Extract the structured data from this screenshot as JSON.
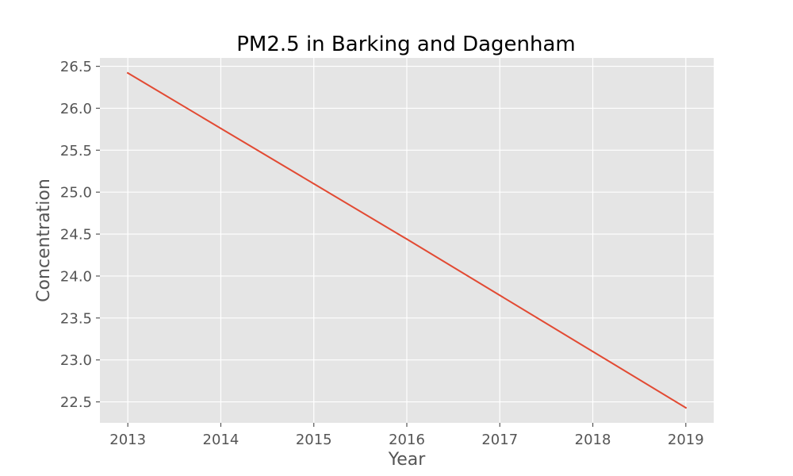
{
  "chart_data": {
    "type": "line",
    "title": "PM2.5 in Barking and Dagenham",
    "xlabel": "Year",
    "ylabel": "Concentration",
    "x": [
      2013,
      2014,
      2015,
      2016,
      2017,
      2018,
      2019
    ],
    "series": [
      {
        "values": [
          26.42,
          25.76,
          25.1,
          24.44,
          23.77,
          23.1,
          22.43
        ],
        "color": "#E24A33"
      }
    ],
    "xlim": [
      2012.7,
      2019.3
    ],
    "ylim": [
      22.25,
      26.6
    ],
    "xticks": [
      "2013",
      "2014",
      "2015",
      "2016",
      "2017",
      "2018",
      "2019"
    ],
    "yticks": [
      "22.5",
      "23.0",
      "23.5",
      "24.0",
      "24.5",
      "25.0",
      "25.5",
      "26.0",
      "26.5"
    ],
    "grid": true,
    "legend": "none",
    "background_color": "#E5E5E5"
  }
}
